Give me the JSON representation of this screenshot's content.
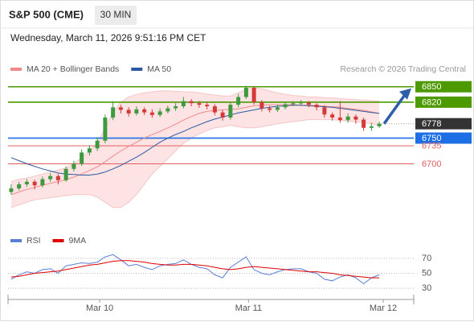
{
  "header": {
    "title": "S&P 500 (CME)",
    "interval": "30 MIN",
    "timestamp": "Wednesday, March 11, 2026 9:51:16 PM CET"
  },
  "chart_data": [
    {
      "type": "candlestick",
      "legend": [
        {
          "name": "MA 20 + Bollinger Bands",
          "color": "#f08a8a"
        },
        {
          "name": "MA 50",
          "color": "#2c5aa0"
        }
      ],
      "credit": "Research © 2026 Trading Central",
      "up_color": "#3f9a3f",
      "down_color": "#d43a3a",
      "xlim": [
        -0.4,
        51.4
      ],
      "ylim": [
        6580,
        6870
      ],
      "open": [
        6645,
        6652,
        6660,
        6665,
        6658,
        6670,
        6676,
        6668,
        6690,
        6700,
        6722,
        6730,
        6745,
        6790,
        6810,
        6805,
        6798,
        6806,
        6800,
        6795,
        6802,
        6808,
        6812,
        6822,
        6818,
        6815,
        6812,
        6800,
        6790,
        6815,
        6830,
        6848,
        6820,
        6808,
        6805,
        6810,
        6816,
        6818,
        6819,
        6815,
        6810,
        6796,
        6790,
        6785,
        6792,
        6786,
        6770,
        6773
      ],
      "high": [
        6660,
        6665,
        6670,
        6669,
        6675,
        6682,
        6680,
        6695,
        6706,
        6728,
        6736,
        6752,
        6796,
        6822,
        6815,
        6810,
        6812,
        6810,
        6806,
        6808,
        6813,
        6818,
        6830,
        6826,
        6822,
        6820,
        6816,
        6805,
        6820,
        6836,
        6852,
        6850,
        6824,
        6813,
        6815,
        6820,
        6822,
        6824,
        6822,
        6818,
        6814,
        6800,
        6822,
        6798,
        6796,
        6790,
        6780,
        6782
      ],
      "low": [
        6640,
        6648,
        6655,
        6650,
        6654,
        6665,
        6660,
        6665,
        6685,
        6696,
        6716,
        6725,
        6740,
        6785,
        6798,
        6792,
        6794,
        6795,
        6790,
        6791,
        6798,
        6803,
        6808,
        6812,
        6809,
        6806,
        6794,
        6784,
        6786,
        6810,
        6826,
        6815,
        6802,
        6800,
        6801,
        6806,
        6812,
        6814,
        6810,
        6804,
        6790,
        6784,
        6780,
        6780,
        6778,
        6764,
        6764,
        6770
      ],
      "close": [
        6652,
        6660,
        6665,
        6658,
        6670,
        6676,
        6668,
        6690,
        6700,
        6722,
        6730,
        6745,
        6790,
        6810,
        6805,
        6798,
        6806,
        6800,
        6795,
        6802,
        6808,
        6812,
        6822,
        6818,
        6815,
        6812,
        6800,
        6790,
        6815,
        6830,
        6848,
        6820,
        6808,
        6805,
        6810,
        6816,
        6818,
        6819,
        6815,
        6810,
        6796,
        6790,
        6785,
        6792,
        6786,
        6770,
        6773,
        6778
      ],
      "ma20": [
        6640,
        6645,
        6650,
        6654,
        6658,
        6662,
        6665,
        6669,
        6674,
        6680,
        6687,
        6694,
        6704,
        6715,
        6725,
        6734,
        6742,
        6750,
        6757,
        6763,
        6770,
        6777,
        6785,
        6792,
        6798,
        6802,
        6804,
        6805,
        6806,
        6807,
        6810,
        6813,
        6814,
        6815,
        6815,
        6815,
        6815,
        6814,
        6814,
        6813,
        6812,
        6811,
        6810,
        6808,
        6806,
        6804,
        6801,
        6798
      ],
      "upper": [
        6665,
        6670,
        6672,
        6676,
        6680,
        6684,
        6688,
        6692,
        6700,
        6712,
        6725,
        6740,
        6770,
        6800,
        6820,
        6830,
        6835,
        6838,
        6840,
        6842,
        6842,
        6841,
        6840,
        6840,
        6838,
        6836,
        6834,
        6832,
        6832,
        6838,
        6845,
        6848,
        6846,
        6842,
        6838,
        6835,
        6833,
        6832,
        6830,
        6830,
        6829,
        6828,
        6827,
        6826,
        6825,
        6824,
        6823,
        6822
      ],
      "lower": [
        6615,
        6620,
        6625,
        6630,
        6632,
        6634,
        6636,
        6638,
        6640,
        6640,
        6640,
        6635,
        6625,
        6615,
        6615,
        6625,
        6640,
        6660,
        6680,
        6695,
        6710,
        6725,
        6740,
        6750,
        6758,
        6765,
        6770,
        6772,
        6775,
        6772,
        6770,
        6770,
        6772,
        6775,
        6778,
        6780,
        6782,
        6784,
        6786,
        6786,
        6786,
        6786,
        6785,
        6783,
        6782,
        6780,
        6778,
        6775
      ],
      "ma50": [
        6712,
        6706,
        6700,
        6695,
        6690,
        6686,
        6682,
        6680,
        6679,
        6678,
        6678,
        6680,
        6684,
        6690,
        6697,
        6705,
        6713,
        6722,
        6732,
        6742,
        6750,
        6757,
        6763,
        6770,
        6776,
        6782,
        6787,
        6791,
        6795,
        6799,
        6802,
        6805,
        6808,
        6810,
        6812,
        6813,
        6814,
        6814,
        6813,
        6812,
        6811,
        6810,
        6808,
        6806,
        6804,
        6802,
        6800,
        6798
      ],
      "levels": [
        {
          "value": 6850,
          "color": "#4d9a00",
          "style": "line-box"
        },
        {
          "value": 6820,
          "color": "#4d9a00",
          "style": "line-box"
        },
        {
          "value": 6778,
          "color": "#333333",
          "style": "last"
        },
        {
          "value": 6750,
          "color": "#1e6fe6",
          "style": "line-box"
        },
        {
          "value": 6735,
          "color": "#e06060",
          "style": "line-text"
        },
        {
          "value": 6700,
          "color": "#e06060",
          "style": "line-text"
        }
      ]
    },
    {
      "type": "line",
      "legend_corner": "top-left",
      "xlim": [
        -0.4,
        51.4
      ],
      "ylim": [
        15,
        85
      ],
      "yticks": [
        70,
        50,
        30
      ],
      "grid": true,
      "series": [
        {
          "name": "RSI",
          "color": "#5b7fd6",
          "values": [
            42,
            48,
            52,
            50,
            55,
            56,
            50,
            60,
            62,
            64,
            63,
            65,
            72,
            75,
            68,
            60,
            62,
            58,
            55,
            60,
            62,
            63,
            68,
            62,
            58,
            56,
            48,
            44,
            58,
            65,
            72,
            55,
            50,
            48,
            52,
            55,
            56,
            56,
            52,
            50,
            42,
            40,
            45,
            48,
            44,
            36,
            44,
            48
          ]
        },
        {
          "name": "9MA",
          "color": "#e00000",
          "values": [
            45,
            46,
            48,
            50,
            51,
            52,
            53,
            55,
            57,
            59,
            61,
            62,
            64,
            66,
            67,
            67,
            66,
            65,
            63,
            62,
            61,
            61,
            62,
            62,
            61,
            60,
            58,
            56,
            55,
            56,
            58,
            59,
            58,
            57,
            56,
            55,
            54,
            53,
            52,
            52,
            51,
            50,
            48,
            47,
            46,
            45,
            44,
            44
          ]
        }
      ],
      "xticks": [
        {
          "value": 11.3,
          "label": "Mar 10"
        },
        {
          "value": 30.3,
          "label": "Mar 11"
        },
        {
          "value": 47.5,
          "label": "Mar 12"
        }
      ]
    }
  ]
}
